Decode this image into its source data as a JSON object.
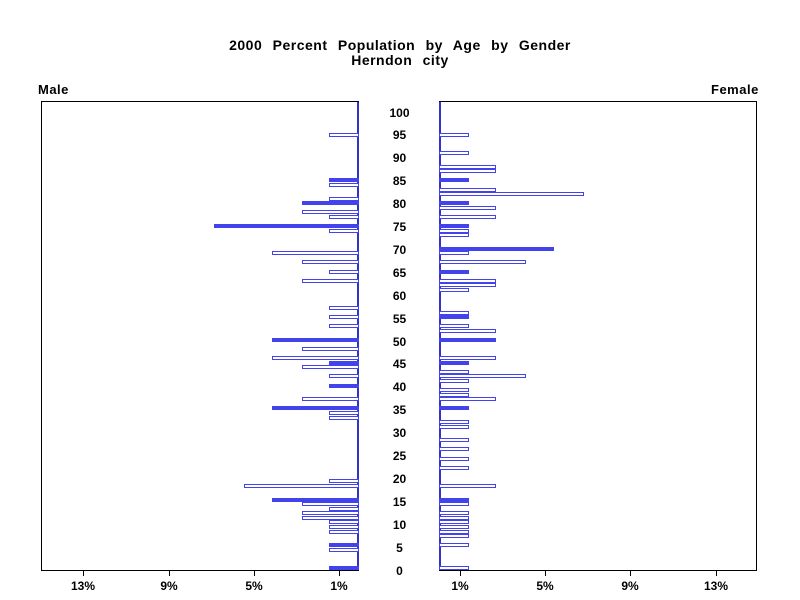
{
  "title": {
    "line1": "2000 Percent Population by Age by Gender",
    "line2": "Herndon city"
  },
  "panels": {
    "left_label": "Male",
    "right_label": "Female"
  },
  "colors": {
    "bar_blue": "#4343ee",
    "bar_empty_fill": "#ffffff",
    "axis_line": "#000000",
    "inner_axis_line": "#3232c8",
    "background": "#ffffff"
  },
  "age_axis": {
    "labels": [
      "100",
      "95",
      "90",
      "85",
      "80",
      "75",
      "70",
      "65",
      "60",
      "55",
      "50",
      "45",
      "40",
      "35",
      "30",
      "25",
      "20",
      "15",
      "10",
      "5",
      "0"
    ],
    "min": 0,
    "max": 100,
    "step": 5
  },
  "x_axis": {
    "male_tick_labels": [
      "13%",
      "9%",
      "5%",
      "1%"
    ],
    "male_tick_values": [
      13,
      9,
      5,
      1
    ],
    "female_tick_labels": [
      "1%",
      "5%",
      "9%",
      "13%"
    ],
    "female_tick_values": [
      1,
      5,
      9,
      13
    ],
    "max_percent_each_side": 15
  },
  "chart_data": {
    "type": "bar",
    "subtype": "population-pyramid",
    "title": "2000 Percent Population by Age by Gender",
    "subtitle": "Herndon city",
    "value_unit": "percent of population",
    "age_range": [
      0,
      100
    ],
    "xlim_each_side": [
      0,
      15
    ],
    "grid": false,
    "bar_note": "bars = [age, percent, filled(1)/outline(0)]; ages omitted have no visible bar (~0%)",
    "series": [
      {
        "name": "Male",
        "side": "left",
        "bars": [
          [
            0,
            1.4,
            1
          ],
          [
            4,
            1.4,
            0
          ],
          [
            5,
            1.4,
            1
          ],
          [
            8,
            1.4,
            0
          ],
          [
            9,
            1.4,
            0
          ],
          [
            10,
            1.4,
            0
          ],
          [
            11,
            2.7,
            0
          ],
          [
            12,
            2.7,
            0
          ],
          [
            13,
            1.4,
            0
          ],
          [
            14,
            2.7,
            0
          ],
          [
            15,
            4.1,
            1
          ],
          [
            18,
            5.4,
            0
          ],
          [
            19,
            1.4,
            0
          ],
          [
            33,
            1.4,
            0
          ],
          [
            34,
            1.4,
            0
          ],
          [
            35,
            4.1,
            1
          ],
          [
            37,
            2.7,
            0
          ],
          [
            40,
            1.4,
            1
          ],
          [
            42,
            1.4,
            0
          ],
          [
            44,
            2.7,
            0
          ],
          [
            45,
            1.4,
            1
          ],
          [
            46,
            4.1,
            0
          ],
          [
            48,
            2.7,
            0
          ],
          [
            50,
            4.1,
            1
          ],
          [
            53,
            1.4,
            0
          ],
          [
            55,
            1.4,
            0
          ],
          [
            57,
            1.4,
            0
          ],
          [
            63,
            2.7,
            0
          ],
          [
            65,
            1.4,
            0
          ],
          [
            67,
            2.7,
            0
          ],
          [
            69,
            4.1,
            0
          ],
          [
            74,
            1.4,
            0
          ],
          [
            75,
            6.8,
            1
          ],
          [
            77,
            1.4,
            0
          ],
          [
            78,
            2.7,
            0
          ],
          [
            80,
            2.7,
            1
          ],
          [
            81,
            1.4,
            0
          ],
          [
            84,
            1.4,
            0
          ],
          [
            85,
            1.4,
            1
          ],
          [
            95,
            1.4,
            0
          ]
        ]
      },
      {
        "name": "Female",
        "side": "right",
        "bars": [
          [
            0,
            1.4,
            0
          ],
          [
            5,
            1.4,
            0
          ],
          [
            7,
            1.4,
            0
          ],
          [
            8,
            1.4,
            0
          ],
          [
            9,
            1.4,
            0
          ],
          [
            10,
            1.4,
            0
          ],
          [
            11,
            1.4,
            0
          ],
          [
            12,
            1.4,
            0
          ],
          [
            14,
            1.4,
            0
          ],
          [
            15,
            1.4,
            1
          ],
          [
            18,
            2.7,
            0
          ],
          [
            22,
            1.4,
            0
          ],
          [
            24,
            1.4,
            0
          ],
          [
            26,
            1.4,
            0
          ],
          [
            28,
            1.4,
            0
          ],
          [
            31,
            1.4,
            0
          ],
          [
            32,
            1.4,
            0
          ],
          [
            35,
            1.4,
            1
          ],
          [
            37,
            2.7,
            0
          ],
          [
            38,
            1.4,
            0
          ],
          [
            39,
            1.4,
            0
          ],
          [
            41,
            1.4,
            0
          ],
          [
            42,
            4.1,
            0
          ],
          [
            43,
            1.4,
            0
          ],
          [
            45,
            1.4,
            1
          ],
          [
            46,
            2.7,
            0
          ],
          [
            50,
            2.7,
            1
          ],
          [
            52,
            2.7,
            0
          ],
          [
            53,
            1.4,
            0
          ],
          [
            55,
            1.4,
            1
          ],
          [
            56,
            1.4,
            0
          ],
          [
            61,
            1.4,
            0
          ],
          [
            62,
            2.7,
            0
          ],
          [
            63,
            2.7,
            0
          ],
          [
            65,
            1.4,
            1
          ],
          [
            67,
            4.1,
            0
          ],
          [
            69,
            1.4,
            0
          ],
          [
            70,
            5.4,
            1
          ],
          [
            73,
            1.4,
            0
          ],
          [
            74,
            1.4,
            0
          ],
          [
            75,
            1.4,
            1
          ],
          [
            77,
            2.7,
            0
          ],
          [
            79,
            2.7,
            0
          ],
          [
            80,
            1.4,
            1
          ],
          [
            82,
            6.8,
            0
          ],
          [
            83,
            2.7,
            0
          ],
          [
            85,
            1.4,
            1
          ],
          [
            87,
            2.7,
            0
          ],
          [
            88,
            2.7,
            0
          ],
          [
            91,
            1.4,
            0
          ],
          [
            95,
            1.4,
            0
          ]
        ]
      }
    ]
  }
}
